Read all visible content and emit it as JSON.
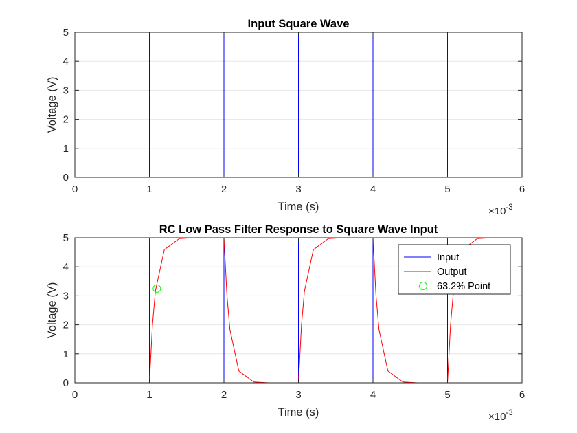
{
  "chart_data": [
    {
      "type": "line",
      "title": "Input Square Wave",
      "xlabel": "Time (s)",
      "ylabel": "Voltage (V)",
      "xlim": [
        0,
        0.006
      ],
      "ylim": [
        0,
        5
      ],
      "x_exponent_label": "×10",
      "x_exponent_power": "-3",
      "xticks": [
        0,
        0.001,
        0.002,
        0.003,
        0.004,
        0.005,
        0.006
      ],
      "xtick_labels": [
        "0",
        "1",
        "2",
        "3",
        "4",
        "5",
        "6"
      ],
      "yticks": [
        0,
        1,
        2,
        3,
        4,
        5
      ],
      "ytick_labels": [
        "0",
        "1",
        "2",
        "3",
        "4",
        "5"
      ],
      "grid": true,
      "series": [
        {
          "color": "#0000ff",
          "x": [
            0,
            0.001,
            0.001,
            0.002,
            0.002,
            0.003,
            0.003,
            0.004,
            0.004,
            0.005,
            0.005,
            0.006,
            0.006
          ],
          "y": [
            0,
            0,
            5,
            5,
            0,
            0,
            5,
            5,
            0,
            0,
            5,
            5,
            0
          ]
        }
      ]
    },
    {
      "type": "line",
      "title": "RC Low Pass Filter Response to Square Wave Input",
      "xlabel": "Time (s)",
      "ylabel": "Voltage (V)",
      "xlim": [
        0,
        0.006
      ],
      "ylim": [
        0,
        5
      ],
      "x_exponent_label": "×10",
      "x_exponent_power": "-3",
      "xticks": [
        0,
        0.001,
        0.002,
        0.003,
        0.004,
        0.005,
        0.006
      ],
      "xtick_labels": [
        "0",
        "1",
        "2",
        "3",
        "4",
        "5",
        "6"
      ],
      "yticks": [
        0,
        1,
        2,
        3,
        4,
        5
      ],
      "ytick_labels": [
        "0",
        "1",
        "2",
        "3",
        "4",
        "5"
      ],
      "grid": true,
      "legend_position": "top-right",
      "series": [
        {
          "name": "Input",
          "color": "#0000ff",
          "x": [
            0,
            0.001,
            0.001,
            0.002,
            0.002,
            0.003,
            0.003,
            0.004,
            0.004,
            0.005,
            0.005,
            0.006,
            0.006
          ],
          "y": [
            0,
            0,
            5,
            5,
            0,
            0,
            5,
            5,
            0,
            0,
            5,
            5,
            4.6
          ]
        },
        {
          "name": "Output",
          "color": "#ff0000",
          "x": [
            0,
            0.001,
            0.00104,
            0.00108,
            0.0012,
            0.0014,
            0.0016,
            0.0018,
            0.002,
            0.00204,
            0.00208,
            0.0022,
            0.0024,
            0.0026,
            0.0028,
            0.003,
            0.00304,
            0.00308,
            0.0032,
            0.0034,
            0.0036,
            0.0038,
            0.004,
            0.00404,
            0.00408,
            0.0042,
            0.0044,
            0.0046,
            0.0048,
            0.005,
            0.00504,
            0.00508,
            0.0052,
            0.0054,
            0.0056,
            0.0058,
            0.006
          ],
          "y": [
            0,
            0,
            1.97,
            3.16,
            4.59,
            4.97,
            5,
            5,
            5,
            3.03,
            1.84,
            0.41,
            0.03,
            0,
            0,
            0,
            1.97,
            3.16,
            4.59,
            4.97,
            5,
            5,
            5,
            3.03,
            1.84,
            0.41,
            0.03,
            0,
            0,
            0,
            1.97,
            3.16,
            4.59,
            4.97,
            5,
            5,
            5
          ]
        },
        {
          "name": "63.2% Point",
          "color": "#00ff00",
          "marker": "circle",
          "x": [
            0.0011
          ],
          "y": [
            3.25
          ]
        }
      ]
    }
  ]
}
